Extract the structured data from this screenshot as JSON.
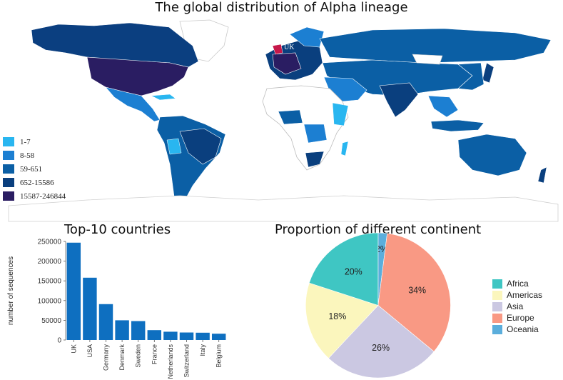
{
  "map": {
    "title": "The global distribution of Alpha lineage",
    "annotation": "UK",
    "legend": [
      {
        "label": "1-7",
        "color": "#29B6F0"
      },
      {
        "label": "8-58",
        "color": "#1C7FD2"
      },
      {
        "label": "59-651",
        "color": "#0B5FA5"
      },
      {
        "label": "652-15586",
        "color": "#0A3F7E"
      },
      {
        "label": "15587-246844",
        "color": "#2A1D62"
      }
    ]
  },
  "chart_data": [
    {
      "type": "bar",
      "title": "Top-10 countries",
      "ylabel": "number of sequences",
      "xlabel": "",
      "categories": [
        "UK",
        "USA",
        "Germany",
        "Denmark",
        "Sweden",
        "France",
        "Netherlands",
        "Switzerland",
        "Italy",
        "Belgium"
      ],
      "values": [
        246844,
        158000,
        91000,
        50000,
        48000,
        25000,
        21000,
        19000,
        18500,
        16000
      ],
      "ylim": [
        0,
        250000
      ],
      "yticks": [
        0,
        50000,
        100000,
        150000,
        200000,
        250000
      ],
      "color": "#0E6FC0",
      "grid": false
    },
    {
      "type": "pie",
      "title": "Proportion of different continent",
      "categories": [
        "Oceania",
        "Europe",
        "Asia",
        "Americas",
        "Africa"
      ],
      "values": [
        2,
        34,
        26,
        18,
        20
      ],
      "labels": [
        "2%",
        "34%",
        "26%",
        "18%",
        "20%"
      ],
      "colors": [
        "#5BAEDC",
        "#F99984",
        "#CBC8E2",
        "#FBF6BD",
        "#3FC6C3"
      ],
      "legend": [
        "Africa",
        "Americas",
        "Asia",
        "Europe",
        "Oceania"
      ],
      "legend_colors": [
        "#3FC6C3",
        "#FBF6BD",
        "#CBC8E2",
        "#F99984",
        "#5BAEDC"
      ],
      "legend_position": "right"
    }
  ]
}
